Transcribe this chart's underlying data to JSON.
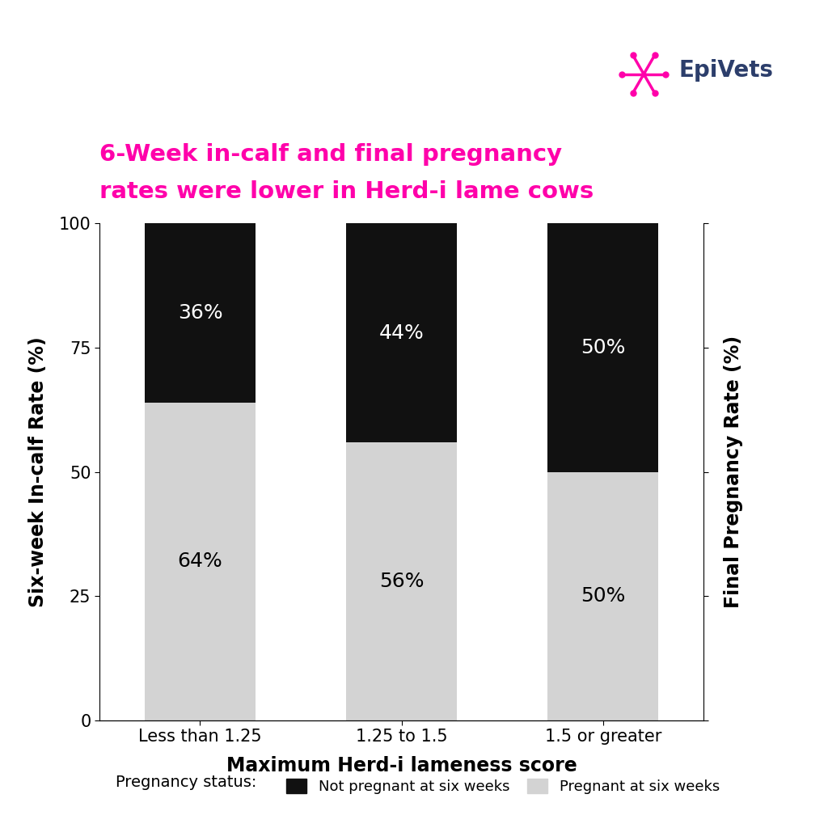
{
  "title_line1": "6-Week in-calf and final pregnancy",
  "title_line2": "rates were lower in Herd-i lame cows",
  "title_color": "#FF00AA",
  "title_fontsize": 21,
  "categories": [
    "Less than 1.25",
    "1.25 to 1.5",
    "1.5 or greater"
  ],
  "pregnant_values": [
    64,
    56,
    50
  ],
  "not_pregnant_values": [
    36,
    44,
    50
  ],
  "pregnant_color": "#D3D3D3",
  "not_pregnant_color": "#111111",
  "pregnant_label": "Pregnant at six weeks",
  "not_pregnant_label": "Not pregnant at six weeks",
  "xlabel": "Maximum Herd-i lameness score",
  "ylabel_left": "Six-week In-calf Rate (%)",
  "ylabel_right": "Final Pregnancy Rate (%)",
  "ylim": [
    0,
    100
  ],
  "yticks": [
    0,
    25,
    50,
    75,
    100
  ],
  "legend_title": "Pregnancy status:",
  "bar_width": 0.55,
  "background_color": "#FFFFFF",
  "epivets_text": "EpiVets",
  "epivets_color": "#2C3E6B",
  "epivets_pink": "#FF00AA",
  "label_fontsize": 17,
  "tick_fontsize": 15,
  "pct_fontsize": 18
}
